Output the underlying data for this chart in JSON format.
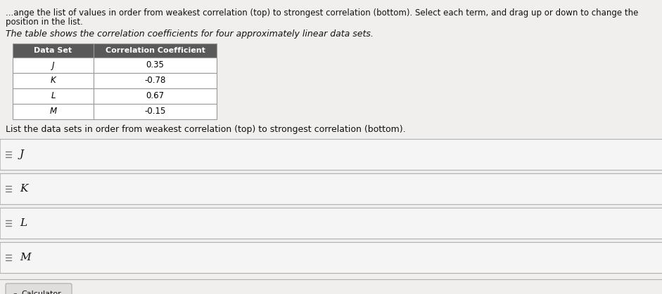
{
  "top_line1": "...ange the list of values in order from weakest correlation (top) to strongest correlation (bottom). Select each term, and drag up or down to change the",
  "top_line2": "position in the list.",
  "table_intro": "The table shows the correlation coefficients for four approximately linear data sets.",
  "table_headers": [
    "Data Set",
    "Correlation Coefficient"
  ],
  "table_rows": [
    [
      "J",
      "0.35"
    ],
    [
      "K",
      "-0.78"
    ],
    [
      "L",
      "0.67"
    ],
    [
      "M",
      "-0.15"
    ]
  ],
  "list_instruction": "List the data sets in order from weakest correlation (top) to strongest correlation (bottom).",
  "list_items": [
    "J",
    "K",
    "L",
    "M"
  ],
  "calculator_label": "Calculator",
  "bg_color": "#f0efee",
  "white": "#ffffff",
  "table_header_bg": "#595959",
  "table_header_fg": "#ffffff",
  "table_row_bg": "#ffffff",
  "table_border": "#999999",
  "list_item_bg": "#f5f5f5",
  "list_separator_color": "#cccccc",
  "list_separator_dark": "#b0b0b0",
  "text_color": "#111111",
  "calc_bg": "#e0dedd",
  "calc_border": "#aaaaaa",
  "font_size_top": 8.5,
  "font_size_intro": 9.0,
  "font_size_table_header": 8.0,
  "font_size_table_data": 8.5,
  "font_size_list": 11,
  "font_size_calc": 8.0,
  "fig_width": 9.41,
  "fig_height": 4.19
}
